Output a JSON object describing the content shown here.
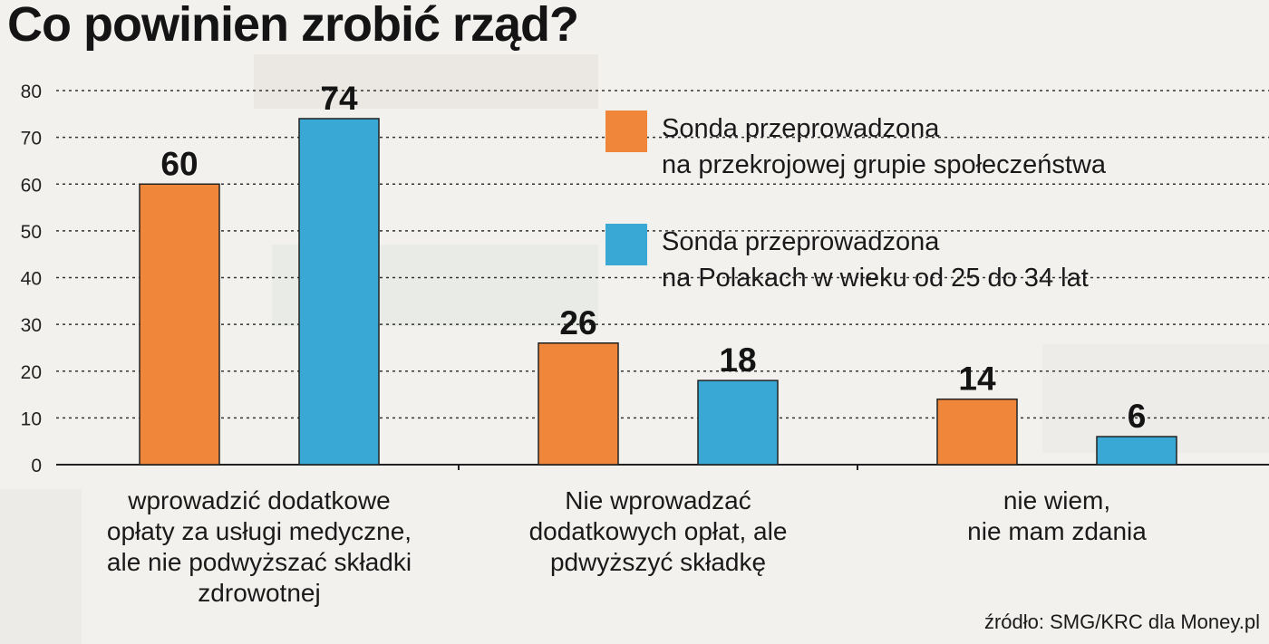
{
  "title": "Co powinien zrobić rząd?",
  "source": "źródło: SMG/KRC dla Money.pl",
  "colors": {
    "series1": "#f0863a",
    "series2": "#3aa8d4"
  },
  "chart_data": {
    "type": "bar",
    "title": "Co powinien zrobić rząd?",
    "categories": [
      "wprowadzić dodatkowe\nopłaty za usługi medyczne,\nale nie podwyższać składki\nzdrowotnej",
      "Nie wprowadzać\ndodatkowych opłat, ale\npdwyższyć składkę",
      "nie wiem,\nnie mam zdania"
    ],
    "series": [
      {
        "name": "Sonda przeprowadzona\nna przekrojowej grupie społeczeństwa",
        "values": [
          60,
          26,
          14
        ]
      },
      {
        "name": "Sonda przeprowadzona\nna Polakach w wieku od 25 do 34 lat",
        "values": [
          74,
          18,
          6
        ]
      }
    ],
    "yticks": [
      0,
      10,
      20,
      30,
      40,
      50,
      60,
      70,
      80
    ],
    "ylim": [
      0,
      80
    ],
    "grid": true,
    "legend": "top-right"
  }
}
